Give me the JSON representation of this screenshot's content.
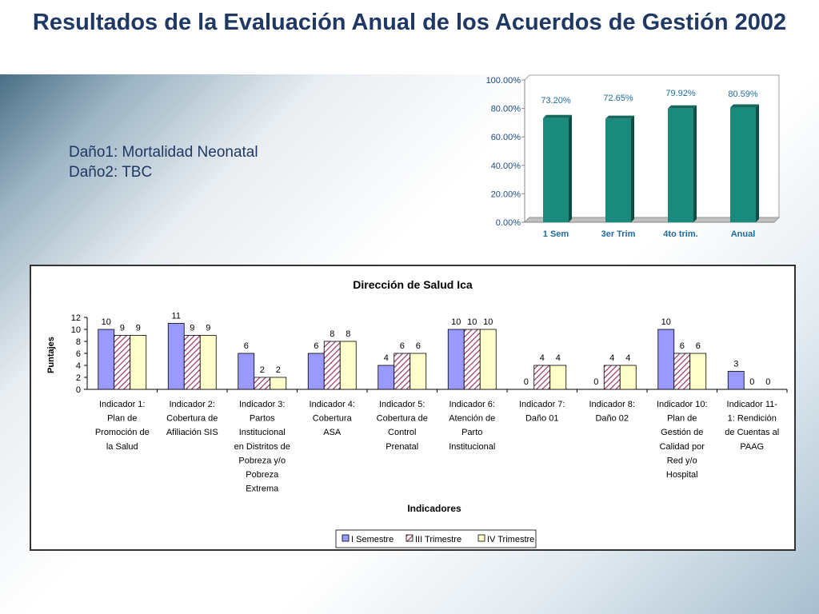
{
  "slide": {
    "title": "Resultados de la Evaluación Anual de los Acuerdos de Gestión 2002",
    "danos": [
      "Daño1: Mortalidad Neonatal",
      "Daño2: TBC"
    ]
  },
  "chart_data": [
    {
      "type": "bar",
      "categories": [
        "1 Sem",
        "3er Trim",
        "4to trim.",
        "Anual"
      ],
      "values": [
        73.2,
        72.65,
        79.92,
        80.59
      ],
      "data_labels": [
        "73.20%",
        "72.65%",
        "79.92%",
        "80.59%"
      ],
      "ylim": [
        0,
        100
      ],
      "yticks": [
        "0.00%",
        "20.00%",
        "40.00%",
        "60.00%",
        "80.00%",
        "100.00%"
      ],
      "title": "",
      "xlabel": "",
      "ylabel": "",
      "grid": false,
      "color": "#1a8a7c"
    },
    {
      "type": "bar",
      "title": "Dirección de Salud Ica",
      "xlabel": "Indicadores",
      "ylabel": "Puntajes",
      "ylim": [
        0,
        12
      ],
      "yticks": [
        "0",
        "2",
        "4",
        "6",
        "8",
        "10",
        "12"
      ],
      "grid": false,
      "legend": "bottom",
      "categories": [
        [
          "Indicador 1:",
          "Plan de",
          "Promoción de",
          "la Salud"
        ],
        [
          "Indicador 2:",
          "Cobertura de",
          "Afiliación SIS"
        ],
        [
          "Indicador 3:",
          "Partos",
          "Institucional",
          "en Distritos de",
          "Pobreza y/o",
          "Pobreza",
          "Extrema"
        ],
        [
          "Indicador 4:",
          "Cobertura",
          "ASA"
        ],
        [
          "Indicador 5:",
          "Cobertura de",
          "Control",
          "Prenatal"
        ],
        [
          "Indicador 6:",
          "Atención de",
          "Parto",
          "Institucional"
        ],
        [
          "Indicador 7:",
          "Daño 01"
        ],
        [
          "Indicador 8:",
          "Daño 02"
        ],
        [
          "Indicador 10:",
          "Plan de",
          "Gestión de",
          "Calidad por",
          "Red y/o",
          "Hospital"
        ],
        [
          "Indicador 11-",
          "1: Rendición",
          "de Cuentas al",
          "PAAG"
        ]
      ],
      "series": [
        {
          "name": "I Semestre",
          "values": [
            10,
            11,
            6,
            6,
            4,
            10,
            0,
            0,
            10,
            3
          ],
          "color": "#9999ff"
        },
        {
          "name": "III Trimestre",
          "values": [
            9,
            9,
            2,
            8,
            6,
            10,
            4,
            4,
            6,
            0
          ],
          "color": "#993366"
        },
        {
          "name": "IV Trimestre",
          "values": [
            9,
            9,
            2,
            8,
            6,
            10,
            4,
            4,
            6,
            0
          ],
          "color": "#ffffcc"
        }
      ]
    }
  ]
}
